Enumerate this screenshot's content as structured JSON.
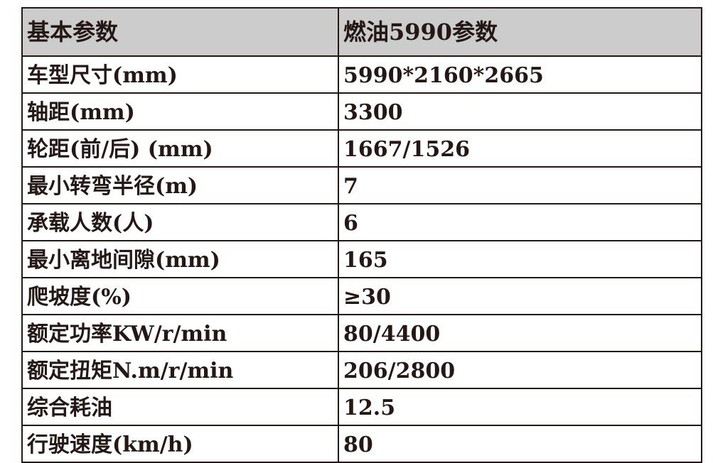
{
  "header": {
    "param": "基本参数",
    "value": "燃油5990参数"
  },
  "rows": [
    {
      "label": "车型尺寸(mm)",
      "value": "5990*2160*2665"
    },
    {
      "label": "轴距(mm)",
      "value": "3300"
    },
    {
      "label": "轮距(前/后) (mm)",
      "value": "1667/1526"
    },
    {
      "label": "最小转弯半径(m)",
      "value": "7"
    },
    {
      "label": "承载人数(人)",
      "value": "6"
    },
    {
      "label": "最小离地间隙(mm)",
      "value": "165"
    },
    {
      "label": "爬坡度(%)",
      "value": "≥30"
    },
    {
      "label": "额定功率KW/r/min",
      "value": "80/4400"
    },
    {
      "label": "额定扭矩N.m/r/min",
      "value": "206/2800"
    },
    {
      "label": "综合耗油",
      "value": "12.5"
    },
    {
      "label": "行驶速度(km/h)",
      "value": "80"
    }
  ]
}
